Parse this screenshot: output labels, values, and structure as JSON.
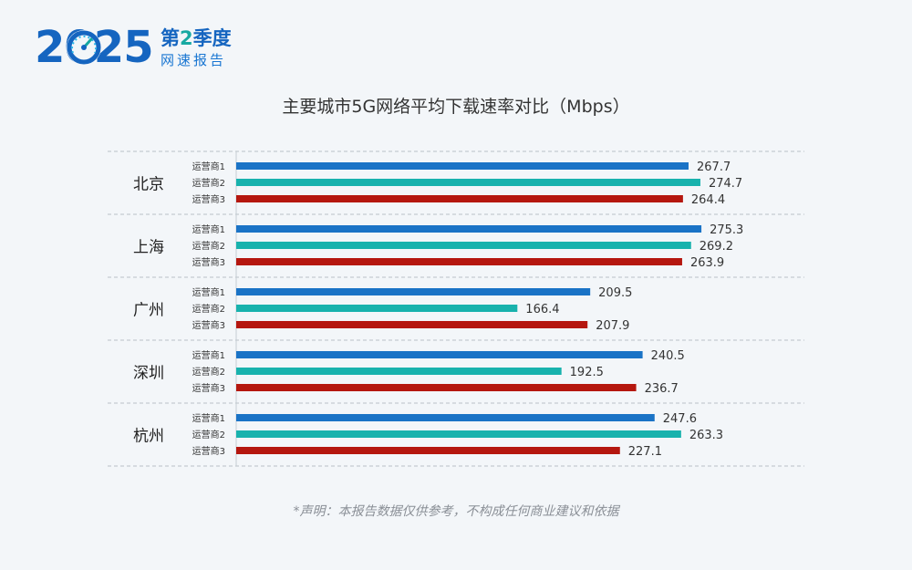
{
  "logo": {
    "year": "2025",
    "quarter_prefix": "第",
    "quarter_num": "2",
    "quarter_suffix": "季度",
    "subtitle": "网速报告"
  },
  "footnote": "*声明：本报告数据仅供参考，不构成任何商业建议和依据",
  "colors": {
    "carrier1": "#1a73c6",
    "carrier2": "#18b2ad",
    "carrier3": "#b5170f"
  },
  "chart_data": {
    "type": "bar",
    "orientation": "horizontal",
    "title": "主要城市5G网络平均下载速率对比（Mbps）",
    "groups": [
      "北京",
      "上海",
      "广州",
      "深圳",
      "杭州"
    ],
    "series": [
      {
        "name": "运营商1",
        "values": [
          267.7,
          275.3,
          209.5,
          240.5,
          247.6
        ]
      },
      {
        "name": "运营商2",
        "values": [
          274.7,
          269.2,
          166.4,
          192.5,
          263.3
        ]
      },
      {
        "name": "运营商3",
        "values": [
          264.4,
          263.9,
          207.9,
          236.7,
          227.1
        ]
      }
    ],
    "xlim": [
      0,
      300
    ],
    "grid": false,
    "legend": "none",
    "data_labels": true
  }
}
